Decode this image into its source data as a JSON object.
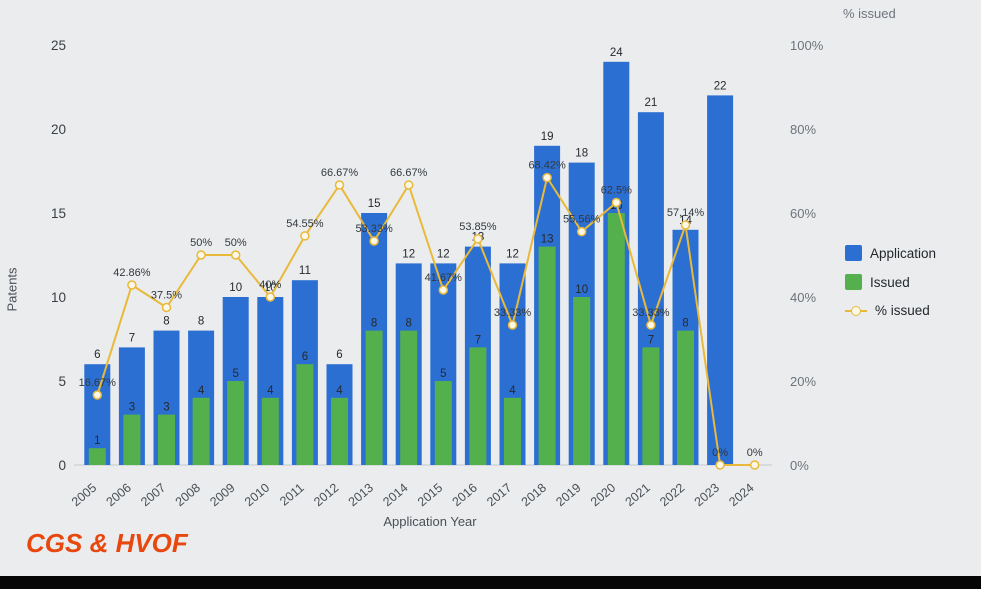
{
  "title": "CGS & HVOF",
  "axes": {
    "left_title": "Patents",
    "right_title": "% issued",
    "x_title": "Application Year"
  },
  "legend": {
    "application": "Application",
    "issued": "Issued",
    "pct": "% issued"
  },
  "colors": {
    "application": "#2b6fd3",
    "issued": "#54b04d",
    "line": "#e9b93a",
    "marker_fill": "#fdf7e8"
  },
  "chart_data": {
    "type": "bar+line",
    "title": "CGS & HVOF",
    "xlabel": "Application Year",
    "ylabel": "Patents",
    "ylabel_right": "% issued",
    "ylim": [
      0,
      25
    ],
    "ylim_right": [
      0,
      100
    ],
    "yticks": [
      0,
      5,
      10,
      15,
      20,
      25
    ],
    "yticks_right_labels": [
      "0%",
      "20%",
      "40%",
      "60%",
      "80%",
      "100%"
    ],
    "grid": false,
    "legend_position": "right",
    "categories": [
      "2005",
      "2006",
      "2007",
      "2008",
      "2009",
      "2010",
      "2011",
      "2012",
      "2013",
      "2014",
      "2015",
      "2016",
      "2017",
      "2018",
      "2019",
      "2020",
      "2021",
      "2022",
      "2023",
      "2024"
    ],
    "series": [
      {
        "name": "Application",
        "type": "bar",
        "values": [
          6,
          7,
          8,
          8,
          10,
          10,
          11,
          6,
          15,
          12,
          12,
          13,
          12,
          19,
          18,
          24,
          21,
          14,
          22,
          0
        ]
      },
      {
        "name": "Issued",
        "type": "bar",
        "values": [
          1,
          3,
          3,
          4,
          5,
          4,
          6,
          4,
          8,
          8,
          5,
          7,
          4,
          13,
          10,
          15,
          7,
          8,
          0,
          0
        ]
      },
      {
        "name": "% issued",
        "type": "line",
        "axis": "right",
        "values": [
          16.67,
          42.86,
          37.5,
          50,
          50,
          40,
          54.55,
          66.67,
          53.33,
          66.67,
          41.67,
          53.85,
          33.33,
          68.42,
          55.56,
          62.5,
          33.33,
          57.14,
          0,
          0
        ],
        "labels": [
          "16.67%",
          "42.86%",
          "37.5%",
          "50%",
          "50%",
          "40%",
          "54.55%",
          "66.67%",
          "53.33%",
          "66.67%",
          "41.67%",
          "53.85%",
          "33.33%",
          "68.42%",
          "55.56%",
          "62.5%",
          "33.33%",
          "57.14%",
          "0%",
          "0%"
        ]
      }
    ]
  }
}
